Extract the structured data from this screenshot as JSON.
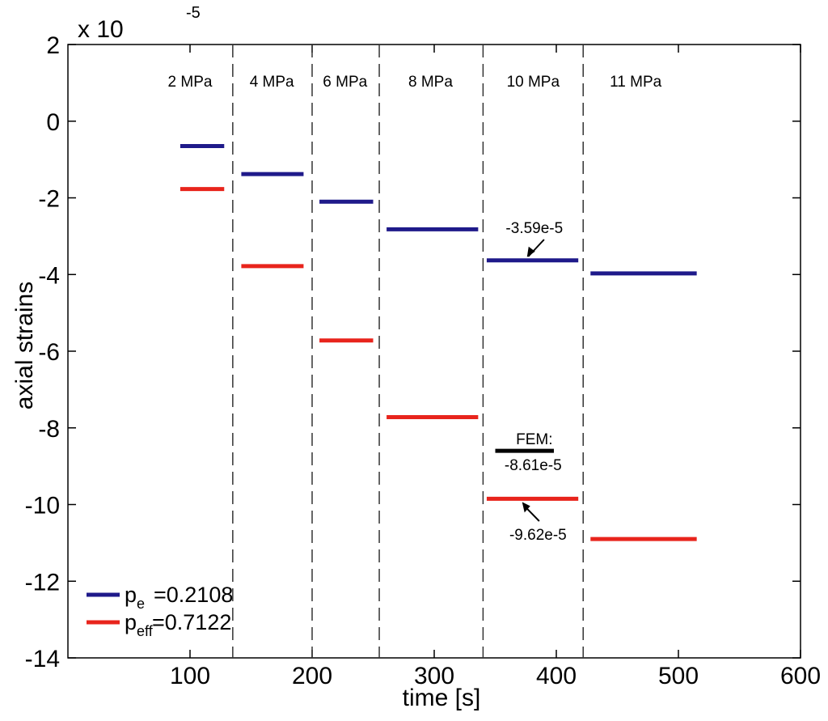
{
  "chart_data": {
    "type": "line",
    "xlabel": "time [s]",
    "ylabel": "axial strains",
    "y_multiplier_label": "x 10",
    "y_multiplier_exponent": "-5",
    "xlim": [
      0,
      600
    ],
    "ylim": [
      -14,
      2
    ],
    "xticks": [
      100,
      200,
      300,
      400,
      500,
      600
    ],
    "yticks": [
      2,
      0,
      -2,
      -4,
      -6,
      -8,
      -10,
      -12,
      -14
    ],
    "grid": false,
    "legend_position": "bottom-left",
    "stage_boundaries": [
      135,
      200,
      255,
      340,
      422
    ],
    "stage_labels": [
      {
        "text": "2 MPa",
        "x": 100
      },
      {
        "text": "4 MPa",
        "x": 167
      },
      {
        "text": "6 MPa",
        "x": 227
      },
      {
        "text": "8 MPa",
        "x": 297
      },
      {
        "text": "10 MPa",
        "x": 381
      },
      {
        "text": "11 MPa",
        "x": 465
      }
    ],
    "series": [
      {
        "legend_main": "p",
        "legend_sub": "e",
        "legend_value": "=0.2108",
        "color": "#1f1a8a",
        "segments": [
          {
            "x0": 92,
            "x1": 128,
            "y": -0.65
          },
          {
            "x0": 142,
            "x1": 193,
            "y": -1.38
          },
          {
            "x0": 206,
            "x1": 250,
            "y": -2.1
          },
          {
            "x0": 261,
            "x1": 336,
            "y": -2.82
          },
          {
            "x0": 343,
            "x1": 418,
            "y": -3.63
          },
          {
            "x0": 428,
            "x1": 515,
            "y": -3.97
          }
        ]
      },
      {
        "legend_main": "p",
        "legend_sub": "eff",
        "legend_value": "=0.7122",
        "color": "#e8241c",
        "segments": [
          {
            "x0": 92,
            "x1": 128,
            "y": -1.77
          },
          {
            "x0": 142,
            "x1": 193,
            "y": -3.78
          },
          {
            "x0": 206,
            "x1": 250,
            "y": -5.72
          },
          {
            "x0": 261,
            "x1": 336,
            "y": -7.72
          },
          {
            "x0": 343,
            "x1": 418,
            "y": -9.85
          },
          {
            "x0": 428,
            "x1": 515,
            "y": -10.9
          }
        ]
      }
    ],
    "annotations": {
      "blue_arrow_label": "-3.59e-5",
      "red_arrow_label": "-9.62e-5",
      "fem_title": "FEM:",
      "fem_value": "-8.61e-5",
      "fem_segment": {
        "x0": 350,
        "x1": 398,
        "y": -8.6
      }
    }
  }
}
